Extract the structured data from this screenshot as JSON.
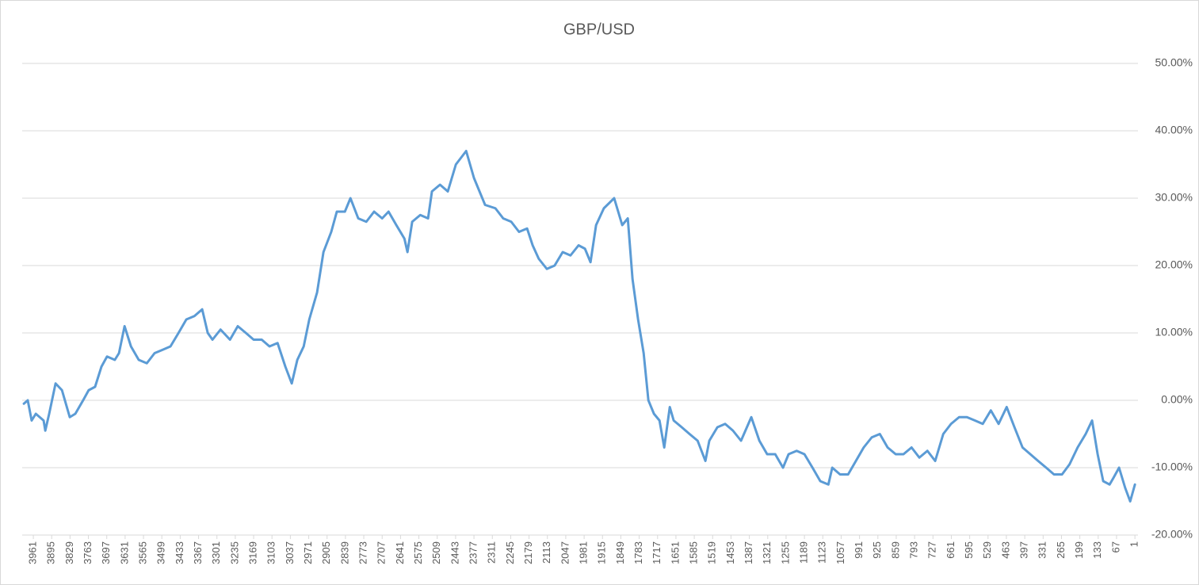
{
  "chart_data": {
    "type": "line",
    "title": "GBP/USD",
    "color": "#5b9bd5",
    "grid": true,
    "xlim": [
      4001,
      -10
    ],
    "xticks": [
      3961,
      3895,
      3829,
      3763,
      3697,
      3631,
      3565,
      3499,
      3433,
      3367,
      3301,
      3235,
      3169,
      3103,
      3037,
      2971,
      2905,
      2839,
      2773,
      2707,
      2641,
      2575,
      2509,
      2443,
      2377,
      2311,
      2245,
      2179,
      2113,
      2047,
      1981,
      1915,
      1849,
      1783,
      1717,
      1651,
      1585,
      1519,
      1453,
      1387,
      1321,
      1255,
      1189,
      1123,
      1057,
      991,
      925,
      859,
      793,
      727,
      661,
      595,
      529,
      463,
      397,
      331,
      265,
      199,
      133,
      67,
      1
    ],
    "ylim": [
      -20,
      50
    ],
    "yticks": [
      {
        "value": -20,
        "label": "-20.00%"
      },
      {
        "value": -10,
        "label": "-10.00%"
      },
      {
        "value": 0,
        "label": "0.00%"
      },
      {
        "value": 10,
        "label": "10.00%"
      },
      {
        "value": 20,
        "label": "20.00%"
      },
      {
        "value": 30,
        "label": "30.00%"
      },
      {
        "value": 40,
        "label": "40.00%"
      },
      {
        "value": 50,
        "label": "50.00%"
      }
    ],
    "x": [
      3995,
      3981,
      3967,
      3952,
      3924,
      3918,
      3904,
      3881,
      3858,
      3830,
      3810,
      3782,
      3762,
      3739,
      3716,
      3696,
      3668,
      3653,
      3633,
      3610,
      3582,
      3553,
      3525,
      3496,
      3468,
      3439,
      3411,
      3382,
      3354,
      3334,
      3317,
      3288,
      3254,
      3226,
      3197,
      3169,
      3140,
      3112,
      3083,
      3055,
      3032,
      3012,
      2989,
      2969,
      2941,
      2918,
      2890,
      2870,
      2841,
      2821,
      2793,
      2764,
      2736,
      2707,
      2684,
      2656,
      2627,
      2616,
      2599,
      2570,
      2542,
      2528,
      2499,
      2471,
      2442,
      2405,
      2377,
      2357,
      2337,
      2300,
      2272,
      2243,
      2215,
      2186,
      2166,
      2144,
      2115,
      2087,
      2058,
      2030,
      2001,
      1978,
      1958,
      1938,
      1910,
      1873,
      1844,
      1824,
      1807,
      1787,
      1767,
      1750,
      1730,
      1710,
      1693,
      1673,
      1659,
      1630,
      1602,
      1573,
      1545,
      1531,
      1502,
      1474,
      1446,
      1417,
      1380,
      1351,
      1323,
      1294,
      1266,
      1246,
      1217,
      1189,
      1160,
      1132,
      1103,
      1089,
      1061,
      1032,
      1004,
      976,
      947,
      918,
      890,
      861,
      833,
      804,
      776,
      747,
      719,
      690,
      662,
      633,
      605,
      576,
      548,
      519,
      491,
      462,
      434,
      405,
      377,
      349,
      320,
      292,
      263,
      236,
      207,
      178,
      155,
      135,
      115,
      92,
      78,
      58,
      36,
      18,
      1
    ],
    "values": [
      -0.5,
      0,
      -3,
      -2,
      -3,
      -4.5,
      -2,
      2.5,
      1.5,
      -2.5,
      -2,
      0,
      1.5,
      2,
      5,
      6.5,
      6,
      7,
      11,
      8,
      6,
      5.5,
      7,
      7.5,
      8,
      10,
      12,
      12.5,
      13.5,
      10,
      9,
      10.5,
      9,
      11,
      10,
      9,
      9,
      8,
      8.5,
      5,
      2.5,
      6,
      8,
      12,
      16,
      22,
      25,
      28,
      28,
      30,
      27,
      26.5,
      28,
      27,
      28,
      26,
      24,
      22,
      26.5,
      27.5,
      27,
      31,
      32,
      31,
      35,
      37,
      33,
      31,
      29,
      28.5,
      27,
      26.5,
      25,
      25.5,
      23,
      21,
      19.5,
      20,
      22,
      21.5,
      23,
      22.5,
      20.5,
      26,
      28.5,
      30,
      26,
      27,
      18,
      12,
      7,
      0,
      -2,
      -3,
      -7,
      -1,
      -3,
      -4,
      -5,
      -6,
      -9,
      -6,
      -4,
      -3.5,
      -4.5,
      -6,
      -2.5,
      -6,
      -8,
      -8,
      -10,
      -8,
      -7.5,
      -8,
      -10,
      -12,
      -12.5,
      -10,
      -11,
      -11,
      -9,
      -7,
      -5.5,
      -5,
      -7,
      -8,
      -8,
      -7,
      -8.5,
      -7.5,
      -9,
      -5,
      -3.5,
      -2.5,
      -2.5,
      -3,
      -3.5,
      -1.5,
      -3.5,
      -1,
      -4,
      -7,
      -8,
      -9,
      -10,
      -11,
      -11,
      -9.5,
      -7,
      -5,
      -3,
      -8,
      -12,
      -12.5,
      -11.5,
      -10,
      -13,
      -15,
      -12.5
    ]
  }
}
